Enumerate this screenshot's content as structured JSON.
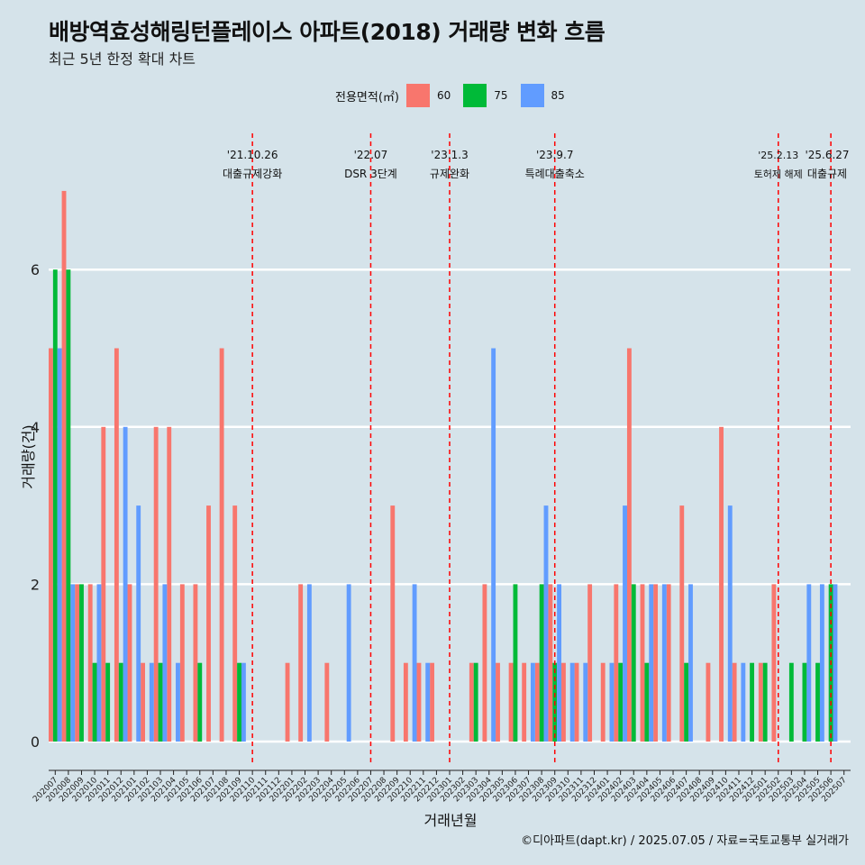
{
  "title": "배방역효성해링턴플레이스 아파트(2018) 거래량 변화 흐름",
  "subtitle": "최근 5년 한정 확대 차트",
  "caption": "©디아파트(dapt.kr) / 2025.07.05 / 자료=국토교통부 실거래가",
  "colors": {
    "background": "#d5e3ea",
    "s60": "#f8766d",
    "s75": "#00ba38",
    "s85": "#619cff",
    "event_line": "#ff0000",
    "grid": "#ffffff"
  },
  "legend": {
    "title": "전용면적(㎡)",
    "items": [
      {
        "label": "60"
      },
      {
        "label": "75"
      },
      {
        "label": "85"
      }
    ]
  },
  "chart_data": {
    "type": "bar",
    "xlabel": "거래년월",
    "ylabel": "거래량(건)",
    "yticks": [
      0,
      2,
      4,
      6
    ],
    "ylim": [
      0,
      7
    ],
    "grid": true,
    "legend_position": "top",
    "categories": [
      "202007",
      "202008",
      "202009",
      "202010",
      "202011",
      "202012",
      "202101",
      "202102",
      "202103",
      "202104",
      "202105",
      "202106",
      "202107",
      "202108",
      "202109",
      "202110",
      "202111",
      "202112",
      "202201",
      "202202",
      "202203",
      "202204",
      "202205",
      "202206",
      "202207",
      "202208",
      "202209",
      "202210",
      "202211",
      "202212",
      "202301",
      "202302",
      "202303",
      "202304",
      "202305",
      "202306",
      "202307",
      "202308",
      "202309",
      "202310",
      "202311",
      "202312",
      "202401",
      "202402",
      "202403",
      "202404",
      "202405",
      "202406",
      "202407",
      "202408",
      "202409",
      "202410",
      "202411",
      "202412",
      "202501",
      "202502",
      "202503",
      "202504",
      "202505",
      "202506",
      "202507"
    ],
    "series": [
      {
        "name": "60",
        "values": [
          5,
          7,
          2,
          2,
          4,
          5,
          2,
          1,
          4,
          4,
          2,
          2,
          3,
          5,
          3,
          0,
          0,
          0,
          1,
          2,
          0,
          1,
          0,
          0,
          0,
          0,
          3,
          1,
          1,
          1,
          0,
          0,
          1,
          2,
          1,
          1,
          1,
          1,
          2,
          1,
          1,
          2,
          1,
          2,
          5,
          2,
          2,
          2,
          3,
          0,
          1,
          4,
          1,
          0,
          1,
          2,
          0,
          0,
          0,
          0,
          0
        ]
      },
      {
        "name": "75",
        "values": [
          6,
          6,
          2,
          1,
          1,
          1,
          0,
          0,
          1,
          0,
          0,
          1,
          0,
          0,
          1,
          0,
          0,
          0,
          0,
          0,
          0,
          0,
          0,
          0,
          0,
          0,
          0,
          0,
          0,
          0,
          0,
          0,
          1,
          0,
          0,
          2,
          0,
          2,
          1,
          0,
          0,
          0,
          0,
          1,
          2,
          1,
          0,
          0,
          1,
          0,
          0,
          0,
          0,
          1,
          1,
          0,
          1,
          1,
          1,
          2,
          0
        ]
      },
      {
        "name": "85",
        "values": [
          5,
          2,
          0,
          2,
          0,
          4,
          3,
          1,
          2,
          1,
          0,
          0,
          0,
          0,
          1,
          0,
          0,
          0,
          0,
          2,
          0,
          0,
          2,
          0,
          0,
          0,
          0,
          2,
          1,
          0,
          0,
          0,
          0,
          5,
          0,
          0,
          1,
          3,
          2,
          1,
          1,
          0,
          1,
          3,
          0,
          2,
          2,
          0,
          2,
          0,
          0,
          3,
          1,
          0,
          0,
          0,
          0,
          2,
          2,
          2,
          0
        ]
      }
    ],
    "events": [
      {
        "date_line1": "'21.10.26",
        "date_line2": "대출규제강화",
        "x": "202110"
      },
      {
        "date_line1": "'22.07",
        "date_line2": "DSR 3단계",
        "x": "202207"
      },
      {
        "date_line1": "'23.1.3",
        "date_line2": "규제완화",
        "x": "202301"
      },
      {
        "date_line1": "'23.9.7",
        "date_line2": "특례대출축소",
        "x": "202309"
      },
      {
        "date_line1": "'25.2.13",
        "date_line2": "토허제 해제",
        "x": "202502"
      },
      {
        "date_line1": "'25.6.27",
        "date_line2": "대출규제",
        "x": "202506"
      }
    ]
  }
}
